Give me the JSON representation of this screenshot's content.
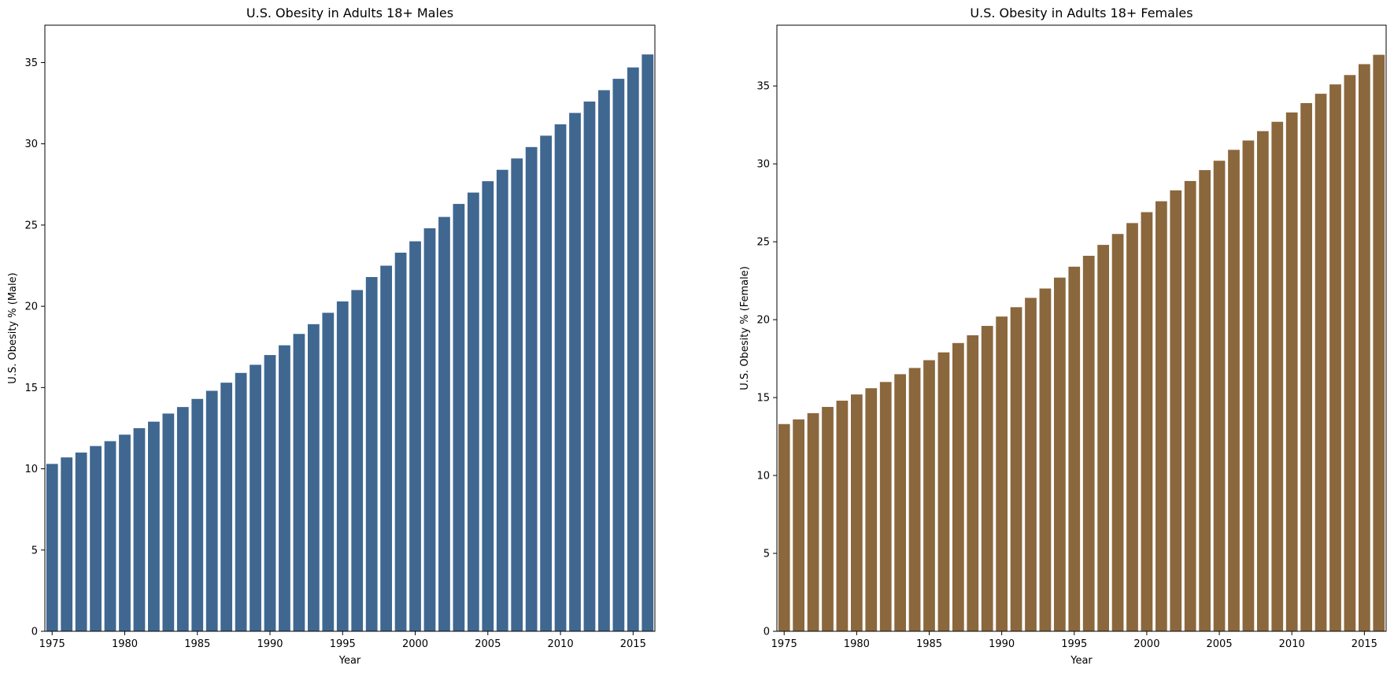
{
  "chart_data": [
    {
      "type": "bar",
      "title": "U.S. Obesity in Adults 18+ Males",
      "xlabel": "Year",
      "ylabel": "U.S. Obesity % (Male)",
      "ylim": [
        0,
        37.3
      ],
      "yticks": [
        0,
        5,
        10,
        15,
        20,
        25,
        30,
        35
      ],
      "xticks": [
        1975,
        1980,
        1985,
        1990,
        1995,
        2000,
        2005,
        2010,
        2015
      ],
      "color": "#3f6790",
      "grid": false,
      "categories": [
        1975,
        1976,
        1977,
        1978,
        1979,
        1980,
        1981,
        1982,
        1983,
        1984,
        1985,
        1986,
        1987,
        1988,
        1989,
        1990,
        1991,
        1992,
        1993,
        1994,
        1995,
        1996,
        1997,
        1998,
        1999,
        2000,
        2001,
        2002,
        2003,
        2004,
        2005,
        2006,
        2007,
        2008,
        2009,
        2010,
        2011,
        2012,
        2013,
        2014,
        2015,
        2016
      ],
      "values": [
        10.3,
        10.7,
        11.0,
        11.4,
        11.7,
        12.1,
        12.5,
        12.9,
        13.4,
        13.8,
        14.3,
        14.8,
        15.3,
        15.9,
        16.4,
        17.0,
        17.6,
        18.3,
        18.9,
        19.6,
        20.3,
        21.0,
        21.8,
        22.5,
        23.3,
        24.0,
        24.8,
        25.5,
        26.3,
        27.0,
        27.7,
        28.4,
        29.1,
        29.8,
        30.5,
        31.2,
        31.9,
        32.6,
        33.3,
        34.0,
        34.7,
        35.5
      ]
    },
    {
      "type": "bar",
      "title": "U.S. Obesity in Adults 18+ Females",
      "xlabel": "Year",
      "ylabel": "U.S. Obesity % (Female)",
      "ylim": [
        0,
        38.9
      ],
      "yticks": [
        0,
        5,
        10,
        15,
        20,
        25,
        30,
        35
      ],
      "xticks": [
        1975,
        1980,
        1985,
        1990,
        1995,
        2000,
        2005,
        2010,
        2015
      ],
      "color": "#8b673d",
      "grid": false,
      "categories": [
        1975,
        1976,
        1977,
        1978,
        1979,
        1980,
        1981,
        1982,
        1983,
        1984,
        1985,
        1986,
        1987,
        1988,
        1989,
        1990,
        1991,
        1992,
        1993,
        1994,
        1995,
        1996,
        1997,
        1998,
        1999,
        2000,
        2001,
        2002,
        2003,
        2004,
        2005,
        2006,
        2007,
        2008,
        2009,
        2010,
        2011,
        2012,
        2013,
        2014,
        2015,
        2016
      ],
      "values": [
        13.3,
        13.6,
        14.0,
        14.4,
        14.8,
        15.2,
        15.6,
        16.0,
        16.5,
        16.9,
        17.4,
        17.9,
        18.5,
        19.0,
        19.6,
        20.2,
        20.8,
        21.4,
        22.0,
        22.7,
        23.4,
        24.1,
        24.8,
        25.5,
        26.2,
        26.9,
        27.6,
        28.3,
        28.9,
        29.6,
        30.2,
        30.9,
        31.5,
        32.1,
        32.7,
        33.3,
        33.9,
        34.5,
        35.1,
        35.7,
        36.4,
        37.0
      ]
    }
  ]
}
